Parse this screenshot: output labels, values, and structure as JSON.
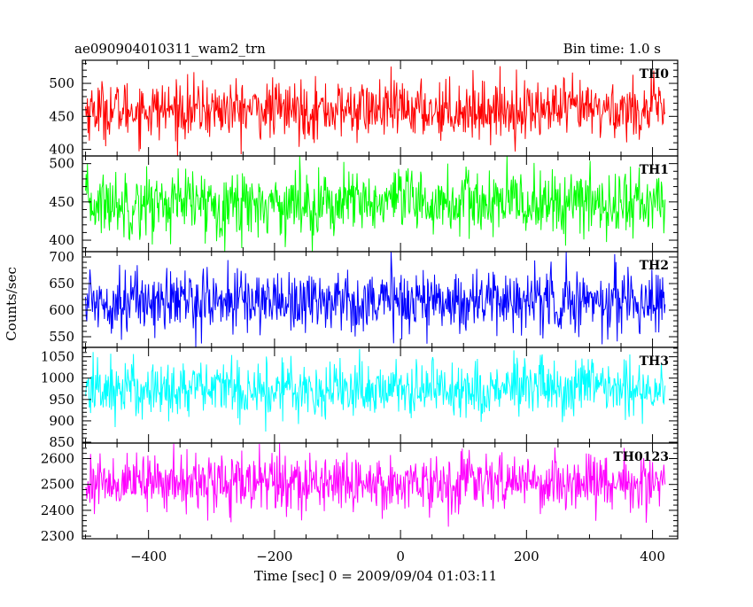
{
  "header": {
    "left_title": "ae090904010311_wam2_trn",
    "right_title": "Bin time: 1.0 s"
  },
  "chart_data": {
    "type": "line",
    "title": "ae090904010311_wam2_trn",
    "subtitle": "Bin time: 1.0 s",
    "xlabel": "Time [sec] 0 = 2009/09/04 01:03:11",
    "ylabel": "Counts/sec",
    "xlim": [
      -505,
      440
    ],
    "x_start": -500,
    "x_end": 420,
    "x_step": 1,
    "x_ticks": [
      -400,
      -200,
      0,
      200,
      400
    ],
    "x_tick_labels": [
      "−400",
      "−200",
      "0",
      "200",
      "400"
    ],
    "grid": false,
    "legend": "none",
    "panels": [
      {
        "name": "TH0",
        "color": "#ff0000",
        "ylim": [
          390,
          535
        ],
        "y_ticks": [
          400,
          450,
          500
        ],
        "y_tick_labels": [
          "400",
          "450",
          "500"
        ],
        "mean": 460,
        "spread": 22,
        "min": 390,
        "max": 535
      },
      {
        "name": "TH1",
        "color": "#00ff00",
        "ylim": [
          385,
          510
        ],
        "y_ticks": [
          400,
          450,
          500
        ],
        "y_tick_labels": [
          "400",
          "450",
          "500"
        ],
        "mean": 448,
        "spread": 22,
        "min": 385,
        "max": 510
      },
      {
        "name": "TH2",
        "color": "#0000ff",
        "ylim": [
          530,
          710
        ],
        "y_ticks": [
          550,
          600,
          650,
          700
        ],
        "y_tick_labels": [
          "550",
          "600",
          "650",
          "700"
        ],
        "mean": 618,
        "spread": 30,
        "min": 530,
        "max": 710
      },
      {
        "name": "TH3",
        "color": "#00ffff",
        "ylim": [
          848,
          1072
        ],
        "y_ticks": [
          850,
          900,
          950,
          1000,
          1050
        ],
        "y_tick_labels": [
          "850",
          "900",
          "950",
          "1000",
          "1050"
        ],
        "mean": 975,
        "spread": 35,
        "min": 848,
        "max": 1072
      },
      {
        "name": "TH0123",
        "color": "#ff00ff",
        "ylim": [
          2290,
          2660
        ],
        "y_ticks": [
          2300,
          2400,
          2500,
          2600
        ],
        "y_tick_labels": [
          "2300",
          "2400",
          "2500",
          "2600"
        ],
        "mean": 2508,
        "spread": 55,
        "min": 2290,
        "max": 2660
      }
    ]
  }
}
